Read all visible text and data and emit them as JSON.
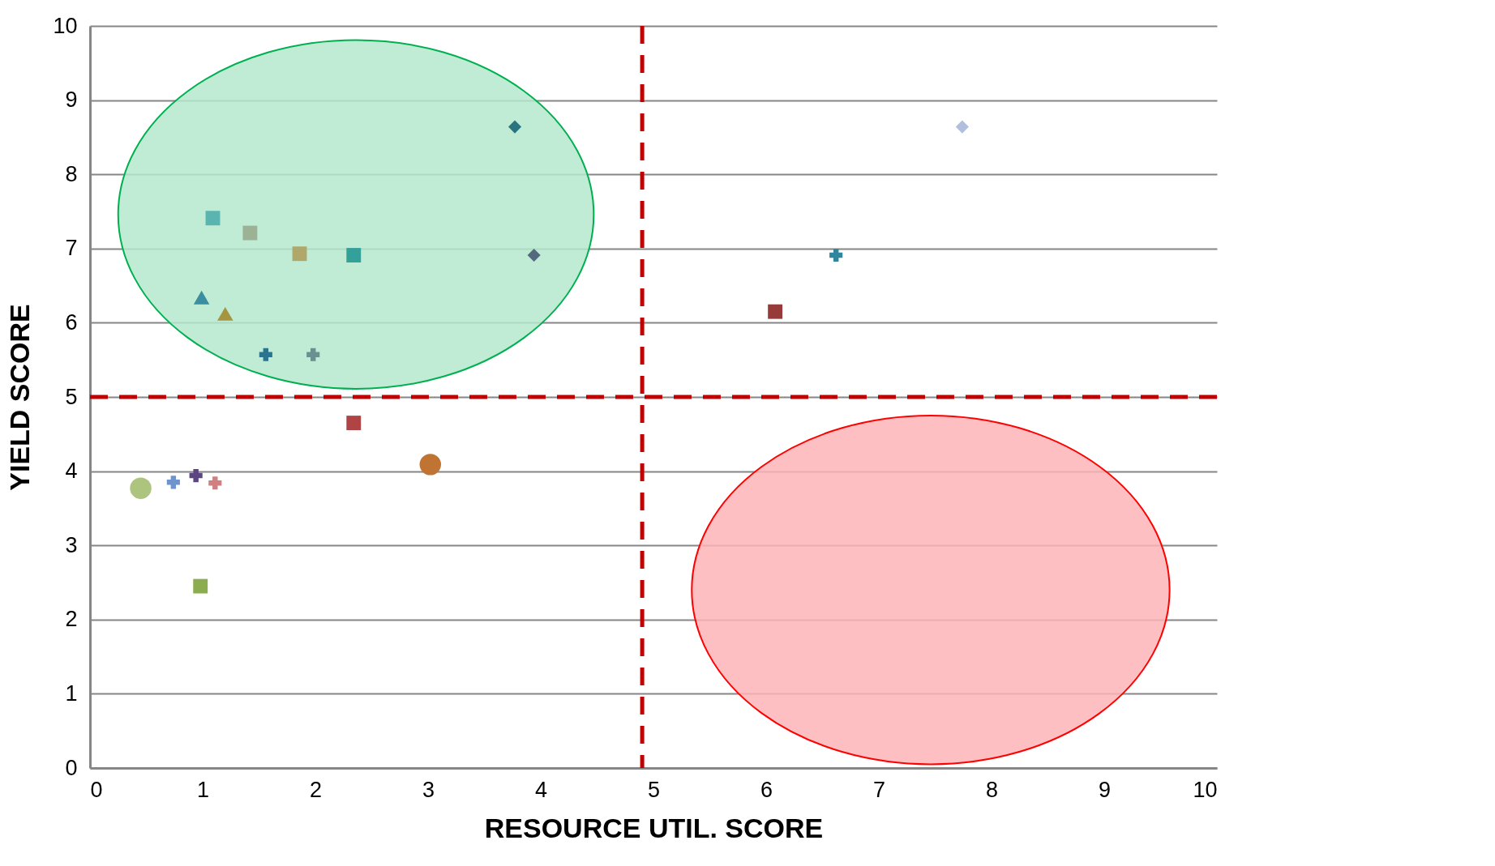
{
  "chart_data": {
    "type": "scatter",
    "xlabel": "RESOURCE UTIL. SCORE",
    "ylabel": "YIELD SCORE",
    "xlim": [
      0,
      10
    ],
    "ylim": [
      0,
      10
    ],
    "xticks": [
      0,
      1,
      2,
      3,
      4,
      5,
      6,
      7,
      8,
      9,
      10
    ],
    "yticks": [
      0,
      1,
      2,
      3,
      4,
      5,
      6,
      7,
      8,
      9,
      10
    ],
    "grid": "y",
    "series": [
      {
        "color": "#2a7480",
        "marker": "diamond",
        "x": [
          3.77
        ],
        "values": [
          8.64
        ]
      },
      {
        "color": "#52697e",
        "marker": "diamond",
        "x": [
          3.94
        ],
        "values": [
          6.91
        ]
      },
      {
        "color": "#b0bfdc",
        "marker": "diamond",
        "x": [
          7.74
        ],
        "values": [
          8.64
        ]
      },
      {
        "color": "#5ab4b0",
        "marker": "square",
        "x": [
          1.09
        ],
        "values": [
          7.41
        ]
      },
      {
        "color": "#9bb394",
        "marker": "square",
        "x": [
          1.42
        ],
        "values": [
          7.21
        ]
      },
      {
        "color": "#b0a86a",
        "marker": "square",
        "x": [
          1.86
        ],
        "values": [
          6.93
        ]
      },
      {
        "color": "#34a09a",
        "marker": "square",
        "x": [
          2.34
        ],
        "values": [
          6.91
        ]
      },
      {
        "color": "#3a8ea0",
        "marker": "triangle",
        "x": [
          0.99
        ],
        "values": [
          6.34
        ]
      },
      {
        "color": "#a59440",
        "marker": "triangle",
        "x": [
          1.2
        ],
        "values": [
          6.12
        ]
      },
      {
        "color": "#2a7490",
        "marker": "cross",
        "x": [
          1.56
        ],
        "values": [
          5.57
        ]
      },
      {
        "color": "#6a9090",
        "marker": "cross",
        "x": [
          1.98
        ],
        "values": [
          5.57
        ]
      },
      {
        "color": "#b04444",
        "marker": "square",
        "x": [
          2.34
        ],
        "values": [
          4.65
        ]
      },
      {
        "color": "#c07434",
        "marker": "circle",
        "x": [
          3.02
        ],
        "values": [
          4.09
        ]
      },
      {
        "color": "#adc47f",
        "marker": "circle",
        "x": [
          0.45
        ],
        "values": [
          3.77
        ]
      },
      {
        "color": "#6f93cc",
        "marker": "cross",
        "x": [
          0.74
        ],
        "values": [
          3.85
        ]
      },
      {
        "color": "#5c4580",
        "marker": "cross",
        "x": [
          0.94
        ],
        "values": [
          3.94
        ]
      },
      {
        "color": "#d08080",
        "marker": "cross",
        "x": [
          1.11
        ],
        "values": [
          3.84
        ]
      },
      {
        "color": "#8cac50",
        "marker": "square",
        "x": [
          0.98
        ],
        "values": [
          2.45
        ]
      },
      {
        "color": "#963a3a",
        "marker": "square",
        "x": [
          6.08
        ],
        "values": [
          6.15
        ]
      },
      {
        "color": "#31859c",
        "marker": "cross",
        "x": [
          6.62
        ],
        "values": [
          6.91
        ]
      }
    ],
    "ref_lines": [
      {
        "axis": "x",
        "value": 4.9,
        "color": "#c00000",
        "line_style": "dashed"
      },
      {
        "axis": "y",
        "value": 5,
        "color": "#c00000",
        "line_style": "dashed"
      }
    ]
  }
}
